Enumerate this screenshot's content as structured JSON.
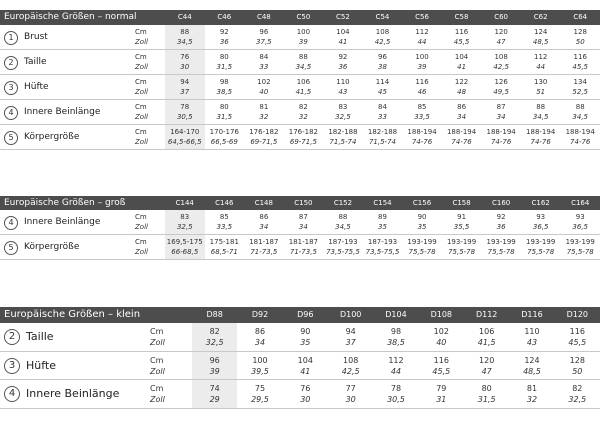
{
  "tables": [
    {
      "title": "Europäische Größen – normal",
      "columns": [
        "C44",
        "C46",
        "C48",
        "C50",
        "C52",
        "C54",
        "C56",
        "C58",
        "C60",
        "C62",
        "C64"
      ],
      "rows": [
        {
          "number": "1",
          "label": "Brust",
          "lines": [
            {
              "unit": "Cm",
              "values": [
                "88",
                "92",
                "96",
                "100",
                "104",
                "108",
                "112",
                "116",
                "120",
                "124",
                "128"
              ]
            },
            {
              "unit": "Zoll",
              "values": [
                "34,5",
                "36",
                "37,5",
                "39",
                "41",
                "42,5",
                "44",
                "45,5",
                "47",
                "48,5",
                "50"
              ]
            }
          ]
        },
        {
          "number": "2",
          "label": "Taille",
          "lines": [
            {
              "unit": "Cm",
              "values": [
                "76",
                "80",
                "84",
                "88",
                "92",
                "96",
                "100",
                "104",
                "108",
                "112",
                "116"
              ]
            },
            {
              "unit": "Zoll",
              "values": [
                "30",
                "31,5",
                "33",
                "34,5",
                "36",
                "38",
                "39",
                "41",
                "42,5",
                "44",
                "45,5"
              ]
            }
          ]
        },
        {
          "number": "3",
          "label": "Hüfte",
          "lines": [
            {
              "unit": "Cm",
              "values": [
                "94",
                "98",
                "102",
                "106",
                "110",
                "114",
                "116",
                "122",
                "126",
                "130",
                "134"
              ]
            },
            {
              "unit": "Zoll",
              "values": [
                "37",
                "38,5",
                "40",
                "41,5",
                "43",
                "45",
                "46",
                "48",
                "49,5",
                "51",
                "52,5"
              ]
            }
          ]
        },
        {
          "number": "4",
          "label": "Innere Beinlänge",
          "lines": [
            {
              "unit": "Cm",
              "values": [
                "78",
                "80",
                "81",
                "82",
                "83",
                "84",
                "85",
                "86",
                "87",
                "88",
                "88"
              ]
            },
            {
              "unit": "Zoll",
              "values": [
                "30,5",
                "31,5",
                "32",
                "32",
                "32,5",
                "33",
                "33,5",
                "34",
                "34",
                "34,5",
                "34,5"
              ]
            }
          ]
        },
        {
          "number": "5",
          "label": "Körpergröße",
          "lines": [
            {
              "unit": "Cm",
              "values": [
                "164-170",
                "170-176",
                "176-182",
                "176-182",
                "182-188",
                "182-188",
                "188-194",
                "188-194",
                "188-194",
                "188-194",
                "188-194"
              ]
            },
            {
              "unit": "Zoll",
              "values": [
                "64,5-66,5",
                "66,5-69",
                "69-71,5",
                "69-71,5",
                "71,5-74",
                "71,5-74",
                "74-76",
                "74-76",
                "74-76",
                "74-76",
                "74-76"
              ]
            }
          ]
        }
      ]
    },
    {
      "title": "Europäische Größen – groß",
      "columns": [
        "C144",
        "C146",
        "C148",
        "C150",
        "C152",
        "C154",
        "C156",
        "C158",
        "C160",
        "C162",
        "C164"
      ],
      "rows": [
        {
          "number": "4",
          "label": "Innere Beinlänge",
          "lines": [
            {
              "unit": "Cm",
              "values": [
                "83",
                "85",
                "86",
                "87",
                "88",
                "89",
                "90",
                "91",
                "92",
                "93",
                "93"
              ]
            },
            {
              "unit": "Zoll",
              "values": [
                "32,5",
                "33,5",
                "34",
                "34",
                "34,5",
                "35",
                "35",
                "35,5",
                "36",
                "36,5",
                "36,5"
              ]
            }
          ]
        },
        {
          "number": "5",
          "label": "Körpergröße",
          "lines": [
            {
              "unit": "Cm",
              "values": [
                "169,5-175",
                "175-181",
                "181-187",
                "181-187",
                "187-193",
                "187-193",
                "193-199",
                "193-199",
                "193-199",
                "193-199",
                "193-199"
              ]
            },
            {
              "unit": "Zoll",
              "values": [
                "66-68,5",
                "68,5-71",
                "71-73,5",
                "71-73,5",
                "73,5-75,5",
                "73,5-75,5",
                "75,5-78",
                "75,5-78",
                "75,5-78",
                "75,5-78",
                "75,5-78"
              ]
            }
          ]
        }
      ]
    },
    {
      "title": "Europäische Größen – klein",
      "columns": [
        "D88",
        "D92",
        "D96",
        "D100",
        "D104",
        "D108",
        "D112",
        "D116",
        "D120"
      ],
      "rows": [
        {
          "number": "2",
          "label": "Taille",
          "lines": [
            {
              "unit": "Cm",
              "values": [
                "82",
                "86",
                "90",
                "94",
                "98",
                "102",
                "106",
                "110",
                "116"
              ]
            },
            {
              "unit": "Zoll",
              "values": [
                "32,5",
                "34",
                "35",
                "37",
                "38,5",
                "40",
                "41,5",
                "43",
                "45,5"
              ]
            }
          ]
        },
        {
          "number": "3",
          "label": "Hüfte",
          "lines": [
            {
              "unit": "Cm",
              "values": [
                "96",
                "100",
                "104",
                "108",
                "112",
                "116",
                "120",
                "124",
                "128"
              ]
            },
            {
              "unit": "Zoll",
              "values": [
                "39",
                "39,5",
                "41",
                "42,5",
                "44",
                "45,5",
                "47",
                "48,5",
                "50"
              ]
            }
          ]
        },
        {
          "number": "4",
          "label": "Innere Beinlänge",
          "lines": [
            {
              "unit": "Cm",
              "values": [
                "74",
                "75",
                "76",
                "77",
                "78",
                "79",
                "80",
                "81",
                "82"
              ]
            },
            {
              "unit": "Zoll",
              "values": [
                "29",
                "29,5",
                "30",
                "30",
                "30,5",
                "31",
                "31,5",
                "32",
                "32,5"
              ]
            }
          ]
        }
      ]
    }
  ]
}
